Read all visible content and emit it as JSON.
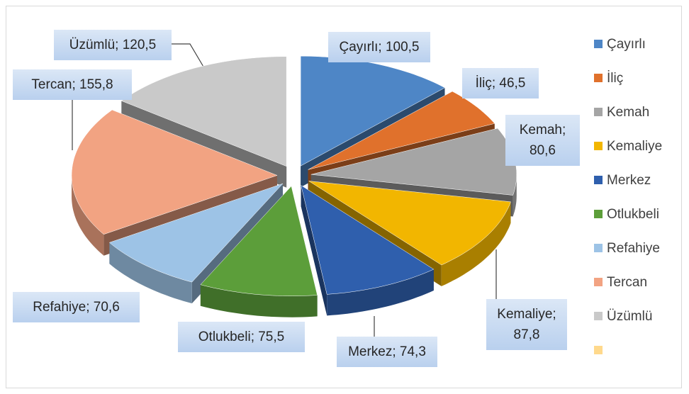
{
  "chart_data": {
    "type": "pie",
    "three_d": true,
    "exploded": true,
    "categories": [
      "Çayırlı",
      "İliç",
      "Kemah",
      "Kemaliye",
      "Merkez",
      "Otlukbeli",
      "Refahiye",
      "Tercan",
      "Üzümlü",
      null
    ],
    "values": [
      100.5,
      46.5,
      80.6,
      87.8,
      74.3,
      75.5,
      70.6,
      155.8,
      120.5,
      null
    ],
    "value_labels": [
      "Çayırlı; 100,5",
      "İliç; 46,5",
      "Kemah; 80,6",
      "Kemaliye; 87,8",
      "Merkez; 74,3",
      "Otlukbeli; 75,5",
      "Refahiye; 70,6",
      "Tercan; 155,8",
      "Üzümlü; 120,5",
      null
    ],
    "colors": [
      "#4e86c6",
      "#e0712c",
      "#a5a5a5",
      "#f2b600",
      "#2f5fad",
      "#5c9e3a",
      "#9dc3e6",
      "#f2a382",
      "#c9c9c9",
      "#ffd98c"
    ],
    "legend": "right"
  }
}
